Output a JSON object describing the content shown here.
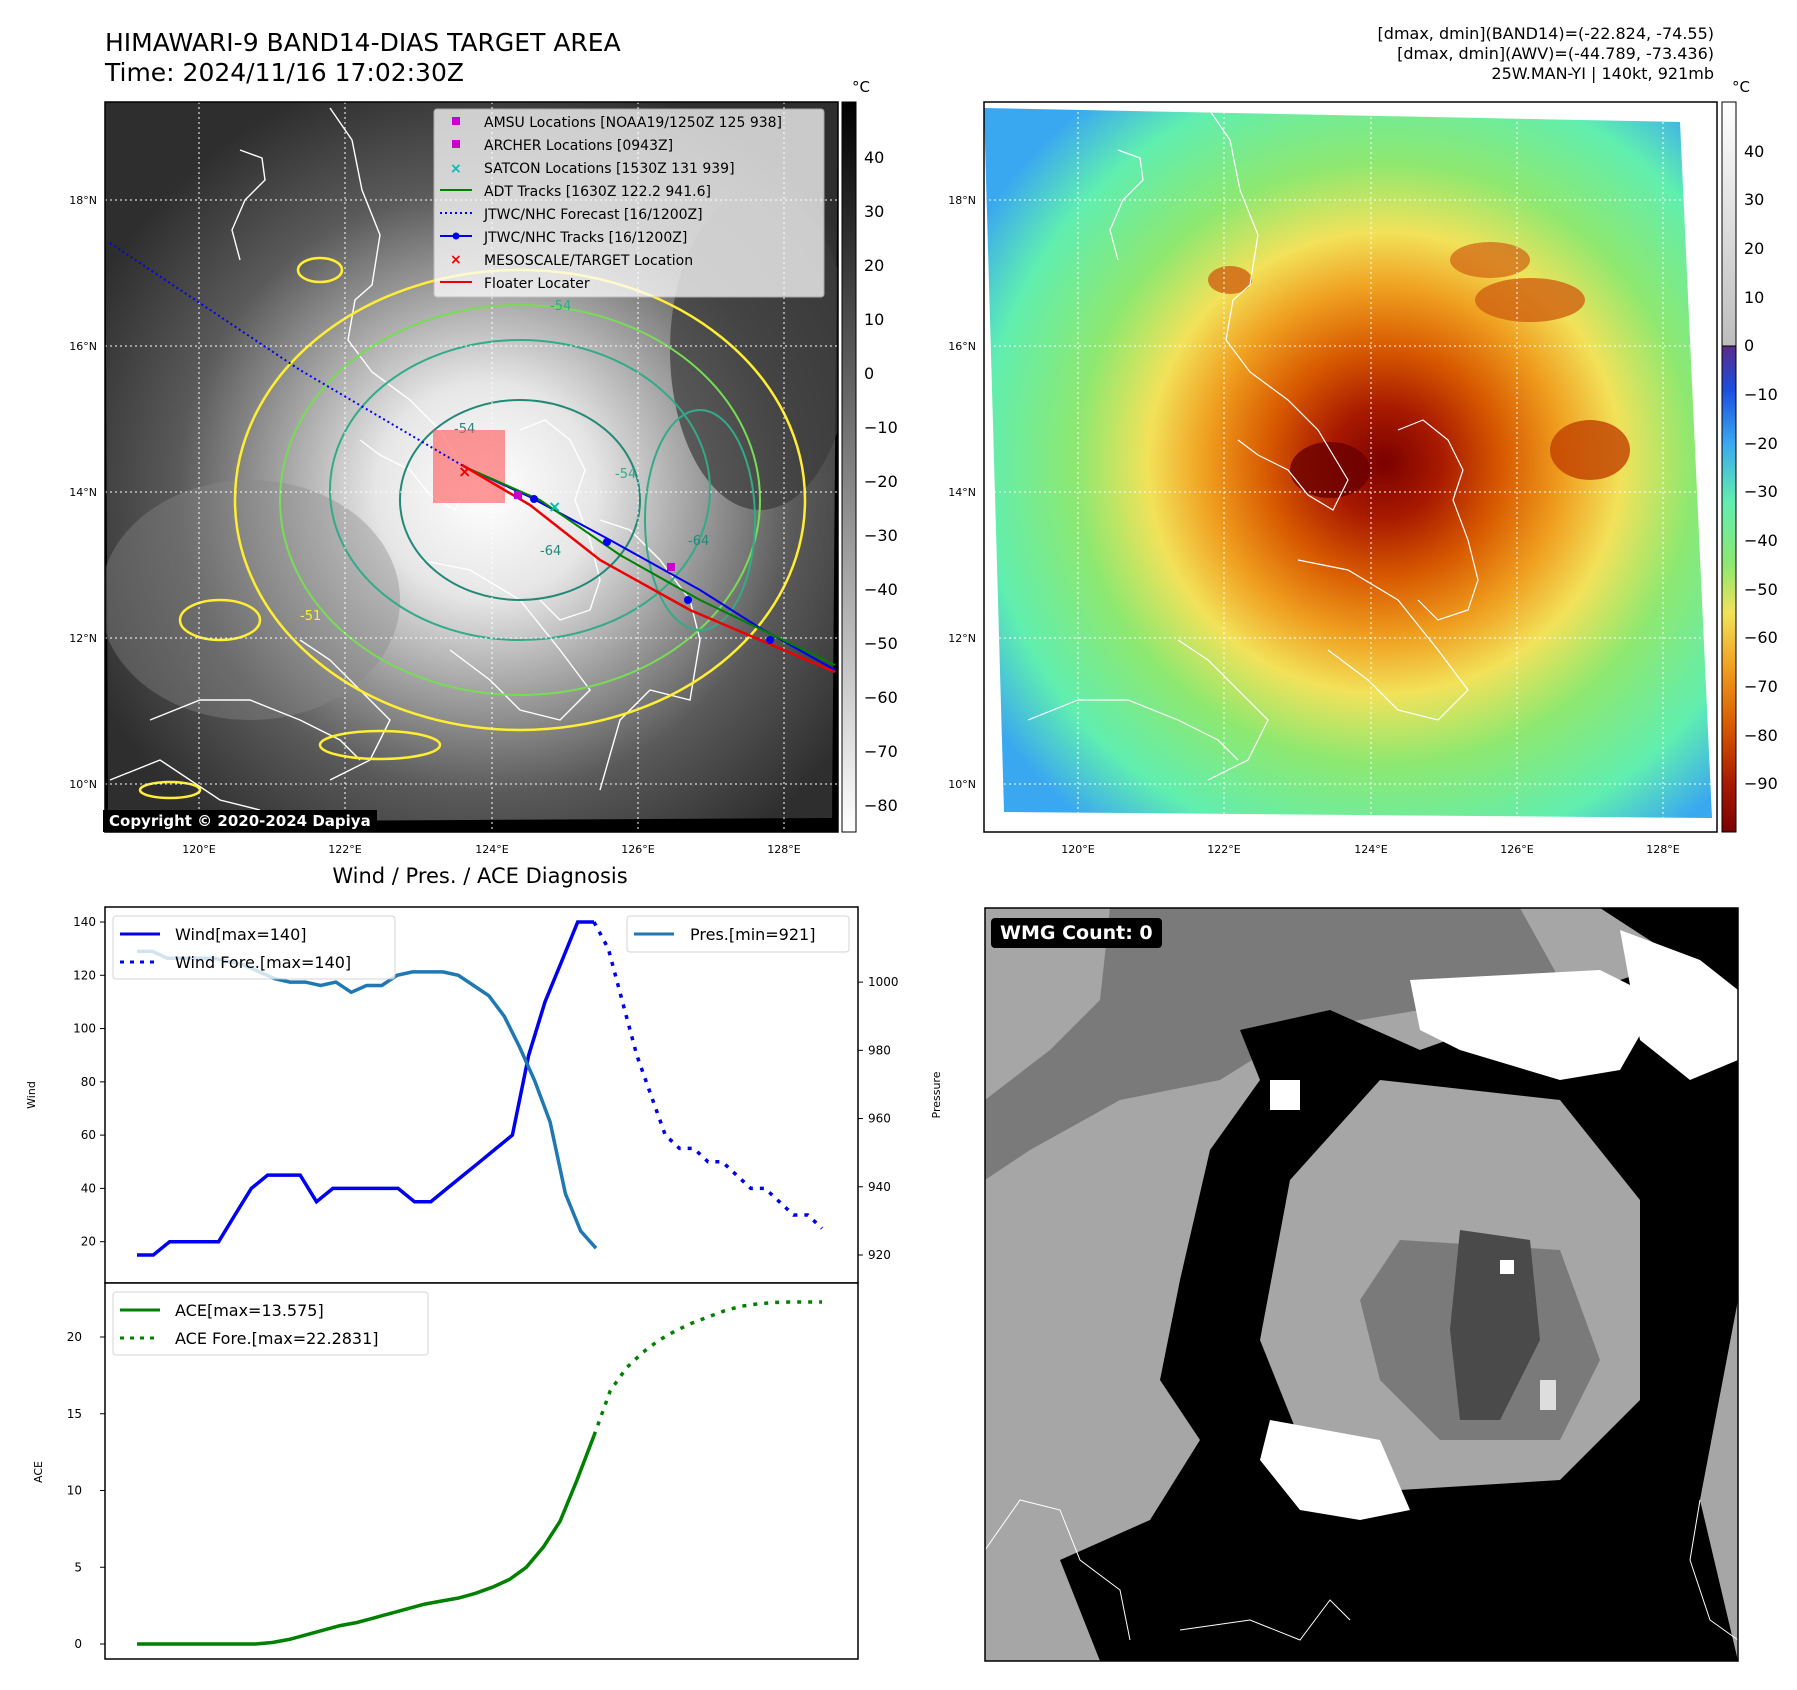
{
  "header": {
    "title_line1": "HIMAWARI-9 BAND14-DIAS TARGET AREA",
    "title_line2": "Time: 2024/11/16 17:02:30Z",
    "info_line1": "[dmax, dmin](BAND14)=(-22.824, -74.55)",
    "info_line2": "[dmax, dmin](AWV)=(-44.789, -73.436)",
    "info_line3": "25W.MAN-YI | 140kt, 921mb",
    "unit_c": "°C"
  },
  "map_axes": {
    "lat_labels": [
      "18°N",
      "16°N",
      "14°N",
      "12°N",
      "10°N"
    ],
    "lon_labels": [
      "120°E",
      "122°E",
      "124°E",
      "126°E",
      "128°E"
    ]
  },
  "left_colorbar": {
    "ticks": [
      "40",
      "30",
      "20",
      "10",
      "0",
      "−10",
      "−20",
      "−30",
      "−40",
      "−50",
      "−60",
      "−70",
      "−80"
    ]
  },
  "right_colorbar": {
    "ticks": [
      "40",
      "30",
      "20",
      "10",
      "0",
      "−10",
      "−20",
      "−30",
      "−40",
      "−50",
      "−60",
      "−70",
      "−80",
      "−90"
    ]
  },
  "legend": {
    "items": [
      {
        "label": "AMSU Locations [NOAA19/1250Z 125 938]",
        "color": "#cc00cc"
      },
      {
        "label": "ARCHER Locations [0943Z]",
        "color": "#cc00cc"
      },
      {
        "label": "SATCON Locations [1530Z 131 939]",
        "color": "#00bbbb"
      },
      {
        "label": "ADT Tracks [1630Z 122.2 941.6]",
        "color": "#008000"
      },
      {
        "label": "JTWC/NHC Forecast [16/1200Z]",
        "color": "#0000ee"
      },
      {
        "label": "JTWC/NHC Tracks [16/1200Z]",
        "color": "#0000ee"
      },
      {
        "label": "MESOSCALE/TARGET Location",
        "color": "#ee0000"
      },
      {
        "label": "Floater Locater",
        "color": "#ee0000"
      }
    ]
  },
  "copyright": "Copyright © 2020-2024 Dapiya",
  "contour_labels": [
    "-54",
    "-54",
    "-64",
    "-64",
    "-54",
    "-51"
  ],
  "diagnosis_title": "Wind / Pres. / ACE Diagnosis",
  "wmg_label": "WMG Count: 0",
  "chart_data": [
    {
      "type": "line",
      "ylabel": "Wind",
      "ylabel_right": "Pressure",
      "yticks": [
        20,
        40,
        60,
        80,
        100,
        120,
        140
      ],
      "yticks_right": [
        920,
        940,
        960,
        980,
        1000
      ],
      "series": [
        {
          "name": "Wind[max=140]",
          "color": "#0000ee",
          "style": "solid",
          "values": [
            15,
            15,
            20,
            20,
            20,
            20,
            30,
            40,
            45,
            45,
            45,
            35,
            40,
            40,
            40,
            40,
            40,
            35,
            35,
            40,
            45,
            50,
            55,
            60,
            90,
            110,
            125,
            140,
            140
          ]
        },
        {
          "name": "Wind Fore.[max=140]",
          "color": "#0000ee",
          "style": "dotted",
          "values": [
            140,
            130,
            110,
            90,
            75,
            60,
            55,
            55,
            50,
            50,
            45,
            40,
            40,
            35,
            30,
            30,
            25
          ]
        },
        {
          "name": "Pres.[min=921]",
          "color": "#1f77b4",
          "style": "solid",
          "values": [
            1009,
            1009,
            1007,
            1007,
            1007,
            1007,
            1006,
            1005,
            1003,
            1001,
            1000,
            1000,
            999,
            1000,
            997,
            999,
            999,
            1002,
            1003,
            1003,
            1003,
            1002,
            999,
            996,
            990,
            981,
            971,
            959,
            938,
            927,
            922
          ]
        }
      ]
    },
    {
      "type": "line",
      "ylabel": "ACE",
      "yticks": [
        0,
        5,
        10,
        15,
        20
      ],
      "series": [
        {
          "name": "ACE[max=13.575]",
          "color": "#008000",
          "style": "solid",
          "values": [
            0,
            0,
            0,
            0,
            0,
            0,
            0,
            0,
            0.1,
            0.3,
            0.6,
            0.9,
            1.2,
            1.4,
            1.7,
            2.0,
            2.3,
            2.6,
            2.8,
            3.0,
            3.3,
            3.7,
            4.2,
            5.0,
            6.3,
            8.0,
            10.7,
            13.575
          ]
        },
        {
          "name": "ACE Fore.[max=22.2831]",
          "color": "#008000",
          "style": "dotted",
          "values": [
            13.575,
            16.5,
            18.0,
            19.0,
            19.8,
            20.4,
            20.9,
            21.3,
            21.7,
            22.0,
            22.15,
            22.25,
            22.2831,
            22.2831,
            22.2831
          ]
        }
      ]
    }
  ]
}
